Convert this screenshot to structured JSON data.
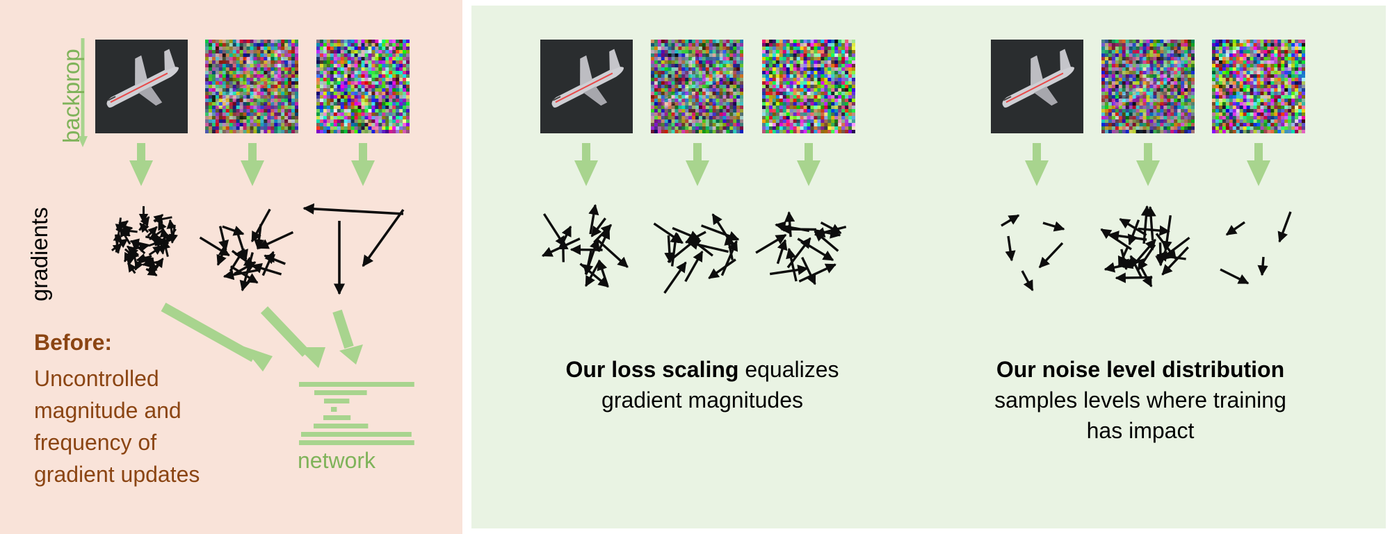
{
  "colors": {
    "before_panel": "#f9e3d9",
    "after_panel": "#e9f3e3",
    "accent_green": "#a8d48e",
    "label_green": "#7fb35a",
    "before_brown": "#8b4513",
    "arrow_black": "#0d0d0d"
  },
  "labels": {
    "backprop": "backprop",
    "gradients": "gradients",
    "network": "network",
    "before_title": "Before:",
    "before_lines": [
      "Uncontrolled",
      "magnitude and",
      "frequency of",
      "gradient updates"
    ],
    "loss_bold": "Our loss scaling",
    "loss_rest": " equalizes",
    "loss_line2": "gradient magnitudes",
    "noise_bold": "Our noise level distribution",
    "noise_line2": "samples levels where training",
    "noise_line3": "has impact"
  },
  "groups": [
    {
      "name": "before",
      "images": [
        {
          "noise": 0
        },
        {
          "noise": 0.7
        },
        {
          "noise": 1
        }
      ]
    },
    {
      "name": "loss-scaling",
      "images": [
        {
          "noise": 0
        },
        {
          "noise": 0.7
        },
        {
          "noise": 1
        }
      ]
    },
    {
      "name": "noise-distribution",
      "images": [
        {
          "noise": 0
        },
        {
          "noise": 0.7
        },
        {
          "noise": 1
        }
      ]
    }
  ]
}
